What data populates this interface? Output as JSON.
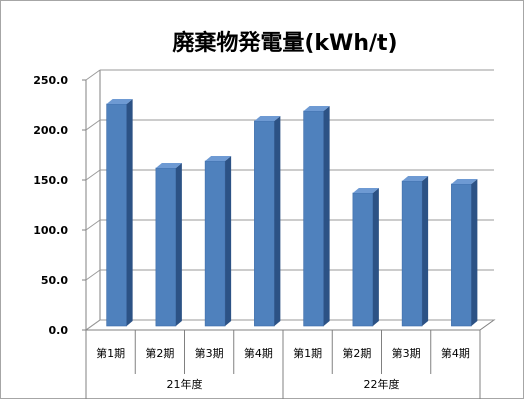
{
  "chart_data": {
    "type": "bar",
    "title": "廃棄物発電量(kWh/t)",
    "xlabel": "",
    "ylabel": "",
    "ylim": [
      0,
      250
    ],
    "yticks": [
      "0.0",
      "50.0",
      "100.0",
      "150.0",
      "200.0",
      "250.0"
    ],
    "categories": [
      "第1期",
      "第2期",
      "第3期",
      "第4期",
      "第1期",
      "第2期",
      "第3期",
      "第4期"
    ],
    "groups": [
      {
        "label": "21年度",
        "span": [
          0,
          3
        ]
      },
      {
        "label": "22年度",
        "span": [
          4,
          7
        ]
      }
    ],
    "values": [
      222,
      158,
      165,
      205,
      215,
      133,
      145,
      142
    ],
    "colors": {
      "bar_face": "#4F81BD",
      "bar_side": "#2C5285",
      "bar_top": "#6E9AD3",
      "gridline": "#9A9A9A",
      "axis": "#808080"
    },
    "grid": true,
    "legend": "none"
  }
}
